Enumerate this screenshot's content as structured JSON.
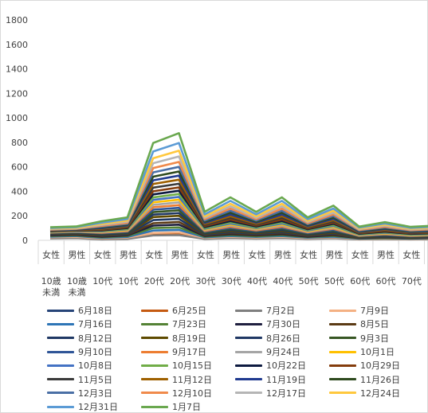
{
  "chart_data": {
    "type": "line",
    "title": "",
    "xlabel": "",
    "ylabel": "",
    "ylim": [
      0,
      1800
    ],
    "yticks": [
      0,
      200,
      400,
      600,
      800,
      1000,
      1200,
      1400,
      1600,
      1800
    ],
    "grid": false,
    "legend_position": "bottom",
    "categories": [
      [
        "女性",
        "10歳未満"
      ],
      [
        "男性",
        "10歳未満"
      ],
      [
        "女性",
        "10代"
      ],
      [
        "男性",
        "10代"
      ],
      [
        "女性",
        "20代"
      ],
      [
        "男性",
        "20代"
      ],
      [
        "女性",
        "30代"
      ],
      [
        "男性",
        "30代"
      ],
      [
        "女性",
        "40代"
      ],
      [
        "男性",
        "40代"
      ],
      [
        "女性",
        "50代"
      ],
      [
        "男性",
        "50代"
      ],
      [
        "女性",
        "60代"
      ],
      [
        "男性",
        "60代"
      ],
      [
        "女性",
        "70代"
      ],
      [
        "男性",
        "70代"
      ]
    ],
    "category_label_lines": [
      [
        "女性",
        "10歳",
        "未満"
      ],
      [
        "男性",
        "10歳",
        "未満"
      ],
      [
        "女性",
        "10代"
      ],
      [
        "男性",
        "10代"
      ],
      [
        "女性",
        "20代"
      ],
      [
        "男性",
        "20代"
      ],
      [
        "女性",
        "30代"
      ],
      [
        "男性",
        "30代"
      ],
      [
        "女性",
        "40代"
      ],
      [
        "男性",
        "40代"
      ],
      [
        "女性",
        "50代"
      ],
      [
        "男性",
        "50代"
      ],
      [
        "女性",
        "60代"
      ],
      [
        "男性",
        "60代"
      ],
      [
        "女性",
        "70代"
      ],
      [
        "男性",
        "70代"
      ]
    ],
    "series_colors": [
      "#264478",
      "#C55A11",
      "#7F7F7F",
      "#F4B183",
      "#2E75B6",
      "#548235",
      "#1F1F3F",
      "#5B3A14",
      "#1F3864",
      "#5E4A00",
      "#203864",
      "#375623",
      "#2F5597",
      "#ED7D31",
      "#A5A5A5",
      "#FFC000",
      "#4472C4",
      "#70AD47",
      "#0D1A40",
      "#843C0C",
      "#3B3B3B",
      "#9E6000",
      "#203A8F",
      "#2E4A1E",
      "#4A6FA5",
      "#F08A4B",
      "#B5B5B5",
      "#FFC83D",
      "#5B9BD5",
      "#6AA84F"
    ],
    "series": [
      {
        "name": "6月18日",
        "values": [
          20,
          22,
          12,
          18,
          50,
          55,
          15,
          22,
          18,
          22,
          15,
          20,
          10,
          12,
          10,
          12
        ]
      },
      {
        "name": "6月25日",
        "values": [
          18,
          20,
          10,
          15,
          45,
          48,
          14,
          20,
          16,
          20,
          14,
          18,
          9,
          11,
          9,
          11
        ]
      },
      {
        "name": "7月2日",
        "values": [
          15,
          18,
          8,
          12,
          40,
          42,
          12,
          18,
          14,
          18,
          12,
          16,
          8,
          10,
          8,
          10
        ]
      },
      {
        "name": "7月9日",
        "values": [
          25,
          28,
          15,
          22,
          60,
          65,
          20,
          28,
          22,
          28,
          18,
          25,
          12,
          15,
          12,
          15
        ]
      },
      {
        "name": "7月16日",
        "values": [
          30,
          35,
          20,
          28,
          80,
          85,
          25,
          35,
          28,
          35,
          22,
          30,
          14,
          18,
          14,
          18
        ]
      },
      {
        "name": "7月23日",
        "values": [
          35,
          40,
          25,
          35,
          100,
          105,
          30,
          42,
          33,
          42,
          26,
          36,
          16,
          20,
          16,
          20
        ]
      },
      {
        "name": "7月30日",
        "values": [
          40,
          45,
          30,
          40,
          120,
          128,
          35,
          50,
          40,
          50,
          30,
          42,
          18,
          24,
          18,
          22
        ]
      },
      {
        "name": "8月5日",
        "values": [
          45,
          50,
          35,
          45,
          140,
          150,
          40,
          58,
          46,
          58,
          35,
          48,
          20,
          27,
          20,
          25
        ]
      },
      {
        "name": "8月12日",
        "values": [
          50,
          55,
          40,
          50,
          165,
          175,
          46,
          66,
          52,
          66,
          40,
          55,
          23,
          30,
          22,
          28
        ]
      },
      {
        "name": "8月19日",
        "values": [
          55,
          60,
          45,
          55,
          190,
          200,
          52,
          75,
          58,
          75,
          45,
          62,
          26,
          34,
          25,
          31
        ]
      },
      {
        "name": "8月26日",
        "values": [
          58,
          63,
          50,
          60,
          210,
          222,
          58,
          84,
          64,
          84,
          50,
          70,
          29,
          38,
          28,
          34
        ]
      },
      {
        "name": "9月3日",
        "values": [
          60,
          66,
          55,
          65,
          230,
          245,
          64,
          93,
          70,
          93,
          55,
          78,
          32,
          42,
          31,
          37
        ]
      },
      {
        "name": "9月10日",
        "values": [
          62,
          68,
          58,
          70,
          250,
          265,
          70,
          102,
          76,
          102,
          60,
          86,
          35,
          46,
          34,
          40
        ]
      },
      {
        "name": "9月17日",
        "values": [
          64,
          70,
          62,
          75,
          270,
          287,
          76,
          111,
          82,
          111,
          65,
          94,
          38,
          50,
          37,
          43
        ]
      },
      {
        "name": "9月24日",
        "values": [
          66,
          72,
          66,
          80,
          290,
          310,
          82,
          120,
          88,
          120,
          70,
          102,
          41,
          54,
          40,
          46
        ]
      },
      {
        "name": "10月1日",
        "values": [
          68,
          74,
          70,
          85,
          310,
          332,
          88,
          129,
          94,
          129,
          75,
          110,
          44,
          58,
          43,
          49
        ]
      },
      {
        "name": "10月8日",
        "values": [
          70,
          76,
          74,
          90,
          330,
          355,
          94,
          138,
          100,
          138,
          80,
          118,
          47,
          62,
          46,
          52
        ]
      },
      {
        "name": "10月15日",
        "values": [
          72,
          78,
          78,
          95,
          350,
          378,
          100,
          147,
          106,
          147,
          85,
          126,
          50,
          66,
          49,
          55
        ]
      },
      {
        "name": "10月22日",
        "values": [
          74,
          80,
          82,
          100,
          375,
          405,
          108,
          158,
          113,
          158,
          91,
          135,
          54,
          71,
          53,
          59
        ]
      },
      {
        "name": "10月29日",
        "values": [
          76,
          82,
          86,
          105,
          400,
          432,
          116,
          170,
          120,
          170,
          97,
          144,
          58,
          76,
          57,
          63
        ]
      },
      {
        "name": "11月5日",
        "values": [
          78,
          84,
          90,
          110,
          430,
          462,
          125,
          183,
          128,
          183,
          103,
          154,
          62,
          81,
          61,
          67
        ]
      },
      {
        "name": "11月12日",
        "values": [
          80,
          86,
          95,
          116,
          460,
          495,
          134,
          197,
          136,
          197,
          110,
          165,
          66,
          87,
          65,
          72
        ]
      },
      {
        "name": "11月19日",
        "values": [
          82,
          88,
          100,
          122,
          490,
          528,
          143,
          211,
          144,
          211,
          117,
          176,
          70,
          93,
          69,
          77
        ]
      },
      {
        "name": "11月26日",
        "values": [
          84,
          90,
          106,
          128,
          520,
          562,
          152,
          226,
          152,
          226,
          124,
          187,
          75,
          99,
          73,
          82
        ]
      },
      {
        "name": "12月3日",
        "values": [
          86,
          92,
          112,
          135,
          555,
          600,
          162,
          242,
          162,
          242,
          132,
          199,
          80,
          105,
          78,
          87
        ]
      },
      {
        "name": "12月10日",
        "values": [
          88,
          94,
          118,
          142,
          590,
          640,
          172,
          259,
          172,
          259,
          140,
          212,
          85,
          112,
          83,
          93
        ]
      },
      {
        "name": "12月17日",
        "values": [
          92,
          98,
          126,
          152,
          630,
          685,
          184,
          278,
          184,
          278,
          150,
          227,
          91,
          120,
          89,
          99
        ]
      },
      {
        "name": "12月24日",
        "values": [
          96,
          102,
          134,
          162,
          670,
          732,
          196,
          298,
          196,
          298,
          160,
          242,
          97,
          128,
          95,
          105
        ]
      },
      {
        "name": "12月31日",
        "values": [
          101,
          107,
          144,
          174,
          725,
          795,
          212,
          322,
          212,
          322,
          172,
          260,
          104,
          137,
          102,
          112
        ]
      },
      {
        "name": "1月7日",
        "values": [
          107,
          113,
          156,
          188,
          795,
          875,
          233,
          351,
          232,
          351,
          187,
          283,
          112,
          148,
          110,
          121
        ]
      }
    ]
  }
}
